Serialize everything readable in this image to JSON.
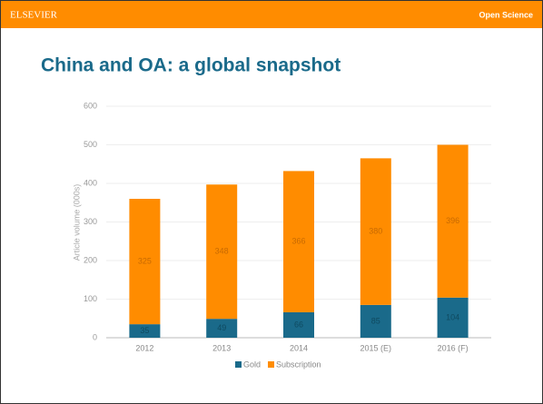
{
  "header": {
    "brand": "ELSEVIER",
    "tag": "Open Science"
  },
  "chart_data": {
    "type": "bar",
    "stacked": true,
    "title": "China and OA: a global snapshot",
    "y_label": "Article volume (000s)",
    "categories": [
      "2012",
      "2013",
      "2014",
      "2015 (E)",
      "2016 (F)"
    ],
    "series": [
      {
        "name": "Gold",
        "color": "#1a6a8a",
        "values": [
          35,
          49,
          66,
          85,
          104
        ]
      },
      {
        "name": "Subscription",
        "color": "#ff8c00",
        "values": [
          325,
          348,
          366,
          380,
          396
        ]
      }
    ],
    "ylim": [
      0,
      600
    ],
    "yticks": [
      0,
      100,
      200,
      300,
      400,
      500,
      600
    ],
    "grid": true,
    "legend": "bottom"
  }
}
